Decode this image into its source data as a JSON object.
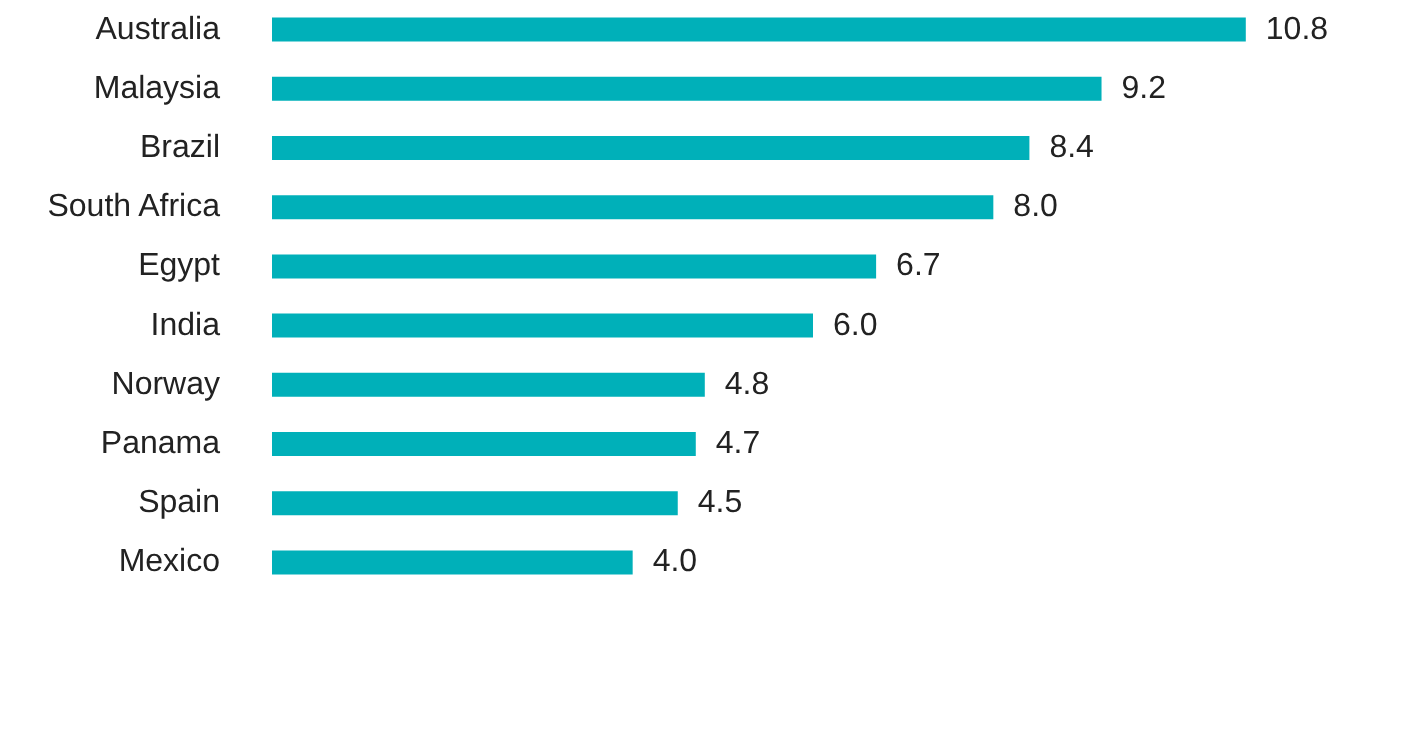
{
  "chart_data": {
    "type": "bar",
    "orientation": "horizontal",
    "categories": [
      "Australia",
      "Malaysia",
      "Brazil",
      "South Africa",
      "Egypt",
      "India",
      "Norway",
      "Panama",
      "Spain",
      "Mexico"
    ],
    "values": [
      10.8,
      9.2,
      8.4,
      8.0,
      6.7,
      6.0,
      4.8,
      4.7,
      4.5,
      4.0
    ],
    "color": "#00b0b9",
    "value_labels": [
      "10.8",
      "9.2",
      "8.4",
      "8.0",
      "6.7",
      "6.0",
      "4.8",
      "4.7",
      "4.5",
      "4.0"
    ]
  }
}
